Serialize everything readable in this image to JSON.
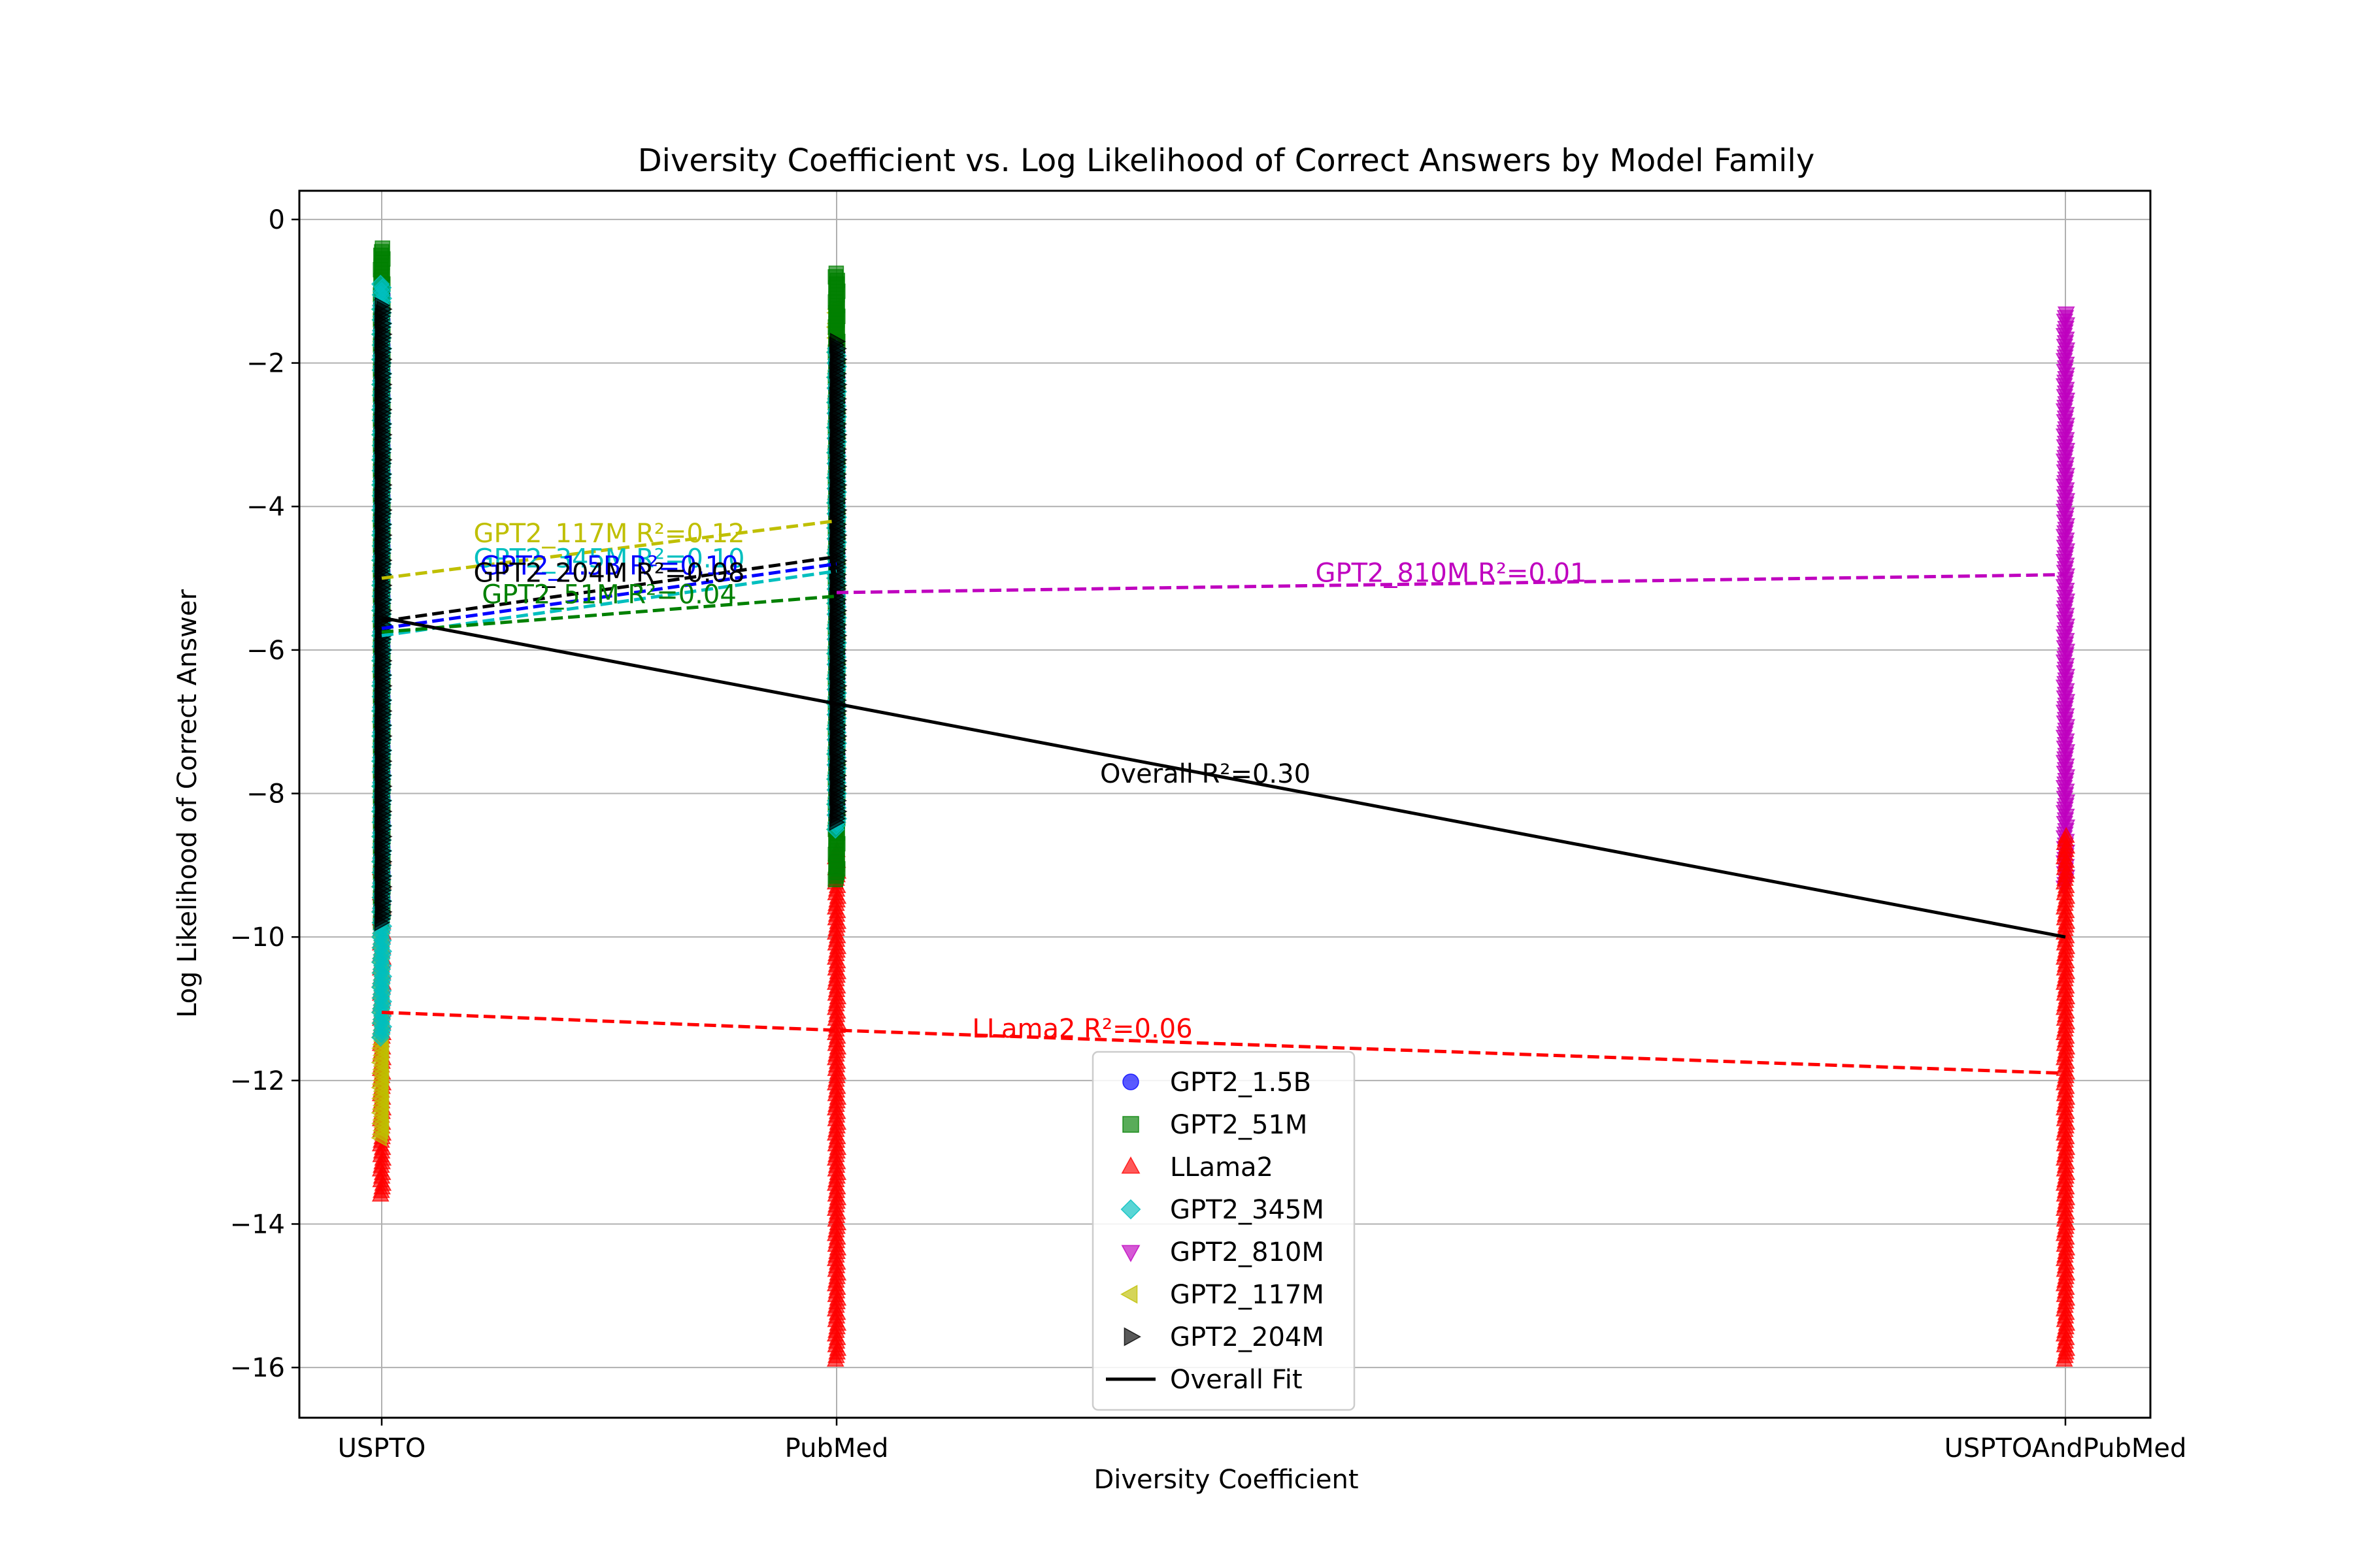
{
  "chart_data": {
    "type": "scatter",
    "title": "Diversity Coefficient vs. Log Likelihood of Correct Answers by Model Family",
    "xlabel": "Diversity Coefficient",
    "ylabel": "Log Likelihood of Correct Answer",
    "categories": [
      "USPTO",
      "PubMed",
      "USPTOAndPubMed"
    ],
    "ylim": [
      -16.7,
      0.4
    ],
    "yticks": [
      0,
      -2,
      -4,
      -6,
      -8,
      -10,
      -12,
      -14,
      -16
    ],
    "ytick_labels": [
      "0",
      "−2",
      "−4",
      "−6",
      "−8",
      "−10",
      "−12",
      "−14",
      "−16"
    ],
    "grid": true,
    "legend_position": "bottom-center",
    "series": [
      {
        "name": "GPT2_1.5B",
        "color": "#0000ff",
        "marker": "circle",
        "ranges": [
          {
            "category": "USPTO",
            "min": -9.6,
            "max": -1.0
          },
          {
            "category": "PubMed",
            "min": -8.3,
            "max": -1.7
          }
        ]
      },
      {
        "name": "GPT2_51M",
        "color": "#008000",
        "marker": "square",
        "ranges": [
          {
            "category": "USPTO",
            "min": -9.8,
            "max": -0.4
          },
          {
            "category": "PubMed",
            "min": -9.2,
            "max": -0.75
          }
        ]
      },
      {
        "name": "LLama2",
        "color": "#ff0000",
        "marker": "triangle-up",
        "ranges": [
          {
            "category": "USPTO",
            "min": -13.6,
            "max": -8.8
          },
          {
            "category": "PubMed",
            "min": -15.9,
            "max": -8.8
          },
          {
            "category": "USPTOAndPubMed",
            "min": -15.9,
            "max": -8.6
          }
        ]
      },
      {
        "name": "GPT2_345M",
        "color": "#00bfbf",
        "marker": "diamond",
        "ranges": [
          {
            "category": "USPTO",
            "min": -11.4,
            "max": -0.9
          },
          {
            "category": "PubMed",
            "min": -8.5,
            "max": -1.8
          }
        ]
      },
      {
        "name": "GPT2_810M",
        "color": "#bf00bf",
        "marker": "triangle-down",
        "ranges": [
          {
            "category": "USPTOAndPubMed",
            "min": -9.3,
            "max": -1.3
          }
        ]
      },
      {
        "name": "GPT2_117M",
        "color": "#bfbf00",
        "marker": "triangle-left",
        "ranges": [
          {
            "category": "USPTO",
            "min": -12.8,
            "max": -1.1
          },
          {
            "category": "PubMed",
            "min": -8.5,
            "max": -1.2
          }
        ]
      },
      {
        "name": "GPT2_204M",
        "color": "#000000",
        "marker": "triangle-right",
        "ranges": [
          {
            "category": "USPTO",
            "min": -9.8,
            "max": -1.2
          },
          {
            "category": "PubMed",
            "min": -8.4,
            "max": -1.7
          }
        ]
      }
    ],
    "fit_lines": [
      {
        "name": "GPT2_117M",
        "color": "#bfbf00",
        "dashed": true,
        "x": [
          0,
          1
        ],
        "y": [
          -5.0,
          -4.2
        ],
        "label": "GPT2_117M R²=0.12",
        "label_x": 0.5,
        "label_y": -4.5
      },
      {
        "name": "GPT2_345M",
        "color": "#00bfbf",
        "dashed": true,
        "x": [
          0,
          1
        ],
        "y": [
          -5.8,
          -4.9
        ],
        "label": "GPT2_345M R²=0.10",
        "label_x": 0.5,
        "label_y": -4.85
      },
      {
        "name": "GPT2_1.5B",
        "color": "#0000ff",
        "dashed": true,
        "x": [
          0,
          1
        ],
        "y": [
          -5.7,
          -4.8
        ],
        "label": "GPT2_1.5B R²=0.10",
        "label_x": 0.5,
        "label_y": -4.95
      },
      {
        "name": "GPT2_204M",
        "color": "#000000",
        "dashed": true,
        "x": [
          0,
          1
        ],
        "y": [
          -5.6,
          -4.7
        ],
        "label": "GPT2_204M R²=0.08",
        "label_x": 0.5,
        "label_y": -5.05
      },
      {
        "name": "GPT2_51M",
        "color": "#008000",
        "dashed": true,
        "x": [
          0,
          1
        ],
        "y": [
          -5.75,
          -5.25
        ],
        "label": "GPT2_51M R²=0.04",
        "label_x": 0.5,
        "label_y": -5.35
      },
      {
        "name": "GPT2_810M",
        "color": "#bf00bf",
        "dashed": true,
        "x": [
          1,
          2
        ],
        "y": [
          -5.2,
          -4.95
        ],
        "label": "GPT2_810M R²=0.01",
        "label_x": 1.5,
        "label_y": -5.05
      },
      {
        "name": "LLama2",
        "color": "#ff0000",
        "dashed": true,
        "x": [
          0,
          1,
          2
        ],
        "y": [
          -11.05,
          -11.3,
          -11.9
        ],
        "label": "LLama2 R²=0.06",
        "label_x": 1.2,
        "label_y": -11.4
      },
      {
        "name": "Overall Fit",
        "color": "#000000",
        "dashed": false,
        "x": [
          0,
          1,
          2
        ],
        "y": [
          -5.55,
          -6.75,
          -10.0
        ],
        "label": "Overall R²=0.30",
        "label_x": 1.3,
        "label_y": -7.85
      }
    ],
    "legend": [
      {
        "label": "GPT2_1.5B",
        "color": "#0000ff",
        "marker": "circle"
      },
      {
        "label": "GPT2_51M",
        "color": "#008000",
        "marker": "square"
      },
      {
        "label": "LLama2",
        "color": "#ff0000",
        "marker": "triangle-up"
      },
      {
        "label": "GPT2_345M",
        "color": "#00bfbf",
        "marker": "diamond"
      },
      {
        "label": "GPT2_810M",
        "color": "#bf00bf",
        "marker": "triangle-down"
      },
      {
        "label": "GPT2_117M",
        "color": "#bfbf00",
        "marker": "triangle-left"
      },
      {
        "label": "GPT2_204M",
        "color": "#000000",
        "marker": "triangle-right"
      },
      {
        "label": "Overall Fit",
        "color": "#000000",
        "marker": "line"
      }
    ]
  }
}
